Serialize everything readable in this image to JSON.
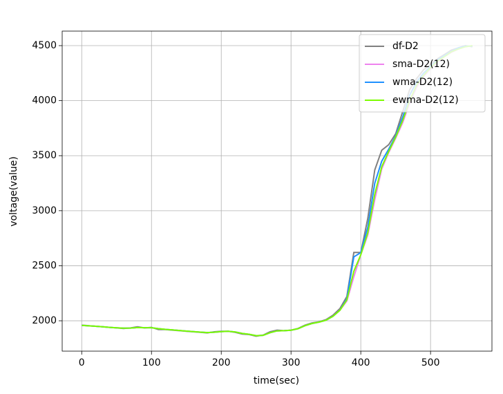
{
  "chart_data": {
    "type": "line",
    "xlabel": "time(sec)",
    "ylabel": "voltage(value)",
    "x": [
      0,
      10,
      20,
      30,
      40,
      50,
      60,
      70,
      80,
      90,
      100,
      110,
      120,
      130,
      140,
      150,
      160,
      170,
      180,
      190,
      200,
      210,
      220,
      230,
      240,
      250,
      260,
      270,
      280,
      290,
      300,
      310,
      320,
      330,
      340,
      350,
      360,
      370,
      380,
      390,
      400,
      410,
      420,
      430,
      440,
      450,
      460,
      470,
      480,
      490,
      500,
      510,
      520,
      530,
      540,
      550,
      560
    ],
    "series": [
      {
        "name": "df-D2",
        "color": "#808080",
        "values": [
          1960,
          1955,
          1950,
          1945,
          1940,
          1935,
          1930,
          1935,
          1945,
          1935,
          1940,
          1920,
          1920,
          1915,
          1910,
          1905,
          1900,
          1895,
          1890,
          1900,
          1905,
          1905,
          1895,
          1880,
          1875,
          1860,
          1870,
          1900,
          1915,
          1910,
          1915,
          1930,
          1960,
          1980,
          1990,
          2010,
          2050,
          2110,
          2220,
          2620,
          2620,
          2930,
          3370,
          3550,
          3600,
          3700,
          3900,
          4100,
          4200,
          4280,
          4330,
          4380,
          4420,
          4460,
          4480,
          4500,
          4490
        ]
      },
      {
        "name": "sma-D2(12)",
        "color": "#ee82ee",
        "values": [
          1958,
          1954,
          1950,
          1945,
          1940,
          1936,
          1933,
          1934,
          1938,
          1937,
          1937,
          1928,
          1922,
          1917,
          1912,
          1906,
          1901,
          1897,
          1893,
          1896,
          1902,
          1904,
          1898,
          1885,
          1877,
          1865,
          1868,
          1892,
          1908,
          1910,
          1914,
          1928,
          1955,
          1975,
          1988,
          2005,
          2040,
          2095,
          2180,
          2400,
          2600,
          2780,
          3100,
          3380,
          3530,
          3660,
          3800,
          3980,
          4120,
          4220,
          4290,
          4350,
          4400,
          4440,
          4470,
          4490,
          4500
        ]
      },
      {
        "name": "wma-D2(12)",
        "color": "#1e90ff",
        "values": [
          1958,
          1954,
          1950,
          1945,
          1940,
          1936,
          1933,
          1934,
          1938,
          1937,
          1937,
          1928,
          1922,
          1917,
          1912,
          1906,
          1901,
          1897,
          1893,
          1896,
          1902,
          1904,
          1898,
          1885,
          1877,
          1865,
          1868,
          1892,
          1908,
          1910,
          1914,
          1928,
          1955,
          1975,
          1988,
          2005,
          2040,
          2095,
          2200,
          2580,
          2620,
          2850,
          3250,
          3450,
          3560,
          3680,
          3850,
          4050,
          4170,
          4250,
          4310,
          4370,
          4410,
          4450,
          4480,
          4495,
          4495
        ]
      },
      {
        "name": "ewma-D2(12)",
        "color": "#7cfc00",
        "values": [
          1958,
          1954,
          1950,
          1945,
          1940,
          1936,
          1933,
          1934,
          1938,
          1937,
          1937,
          1928,
          1922,
          1917,
          1912,
          1906,
          1901,
          1897,
          1893,
          1896,
          1902,
          1904,
          1898,
          1885,
          1877,
          1865,
          1868,
          1892,
          1908,
          1910,
          1914,
          1928,
          1955,
          1975,
          1988,
          2005,
          2040,
          2095,
          2190,
          2450,
          2600,
          2800,
          3150,
          3400,
          3540,
          3670,
          3820,
          4000,
          4140,
          4230,
          4300,
          4360,
          4400,
          4445,
          4470,
          4490,
          4500
        ]
      }
    ],
    "xlim": [
      -28,
      588
    ],
    "ylim": [
      1724,
      4632
    ],
    "xticks": [
      0,
      100,
      200,
      300,
      400,
      500
    ],
    "yticks": [
      2000,
      2500,
      3000,
      3500,
      4000,
      4500
    ],
    "grid": true,
    "legend": "upper right"
  }
}
